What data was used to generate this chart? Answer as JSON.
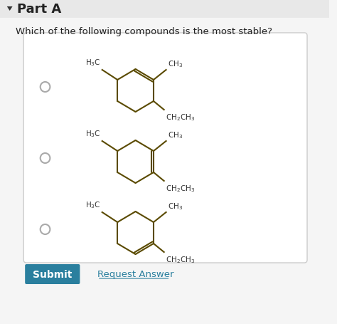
{
  "title": "Part A",
  "question": "Which of the following compounds is the most stable?",
  "bg_color": "#f5f5f5",
  "header_bg": "#e8e8e8",
  "box_bg": "#ffffff",
  "box_border": "#cccccc",
  "submit_bg": "#2a7f9e",
  "submit_text": "Submit",
  "request_text": "Request Answer",
  "request_color": "#2a7f9e",
  "arrow_color": "#333333",
  "structure_color": "#5a4a00",
  "text_color": "#222222",
  "radio_color": "#aaaaaa",
  "structures": [
    {
      "double_bond_top": true,
      "double_bond_bottom": false
    },
    {
      "double_bond_top": false,
      "double_bond_middle": true
    },
    {
      "double_bond_top": false,
      "double_bond_bottom": true
    }
  ]
}
